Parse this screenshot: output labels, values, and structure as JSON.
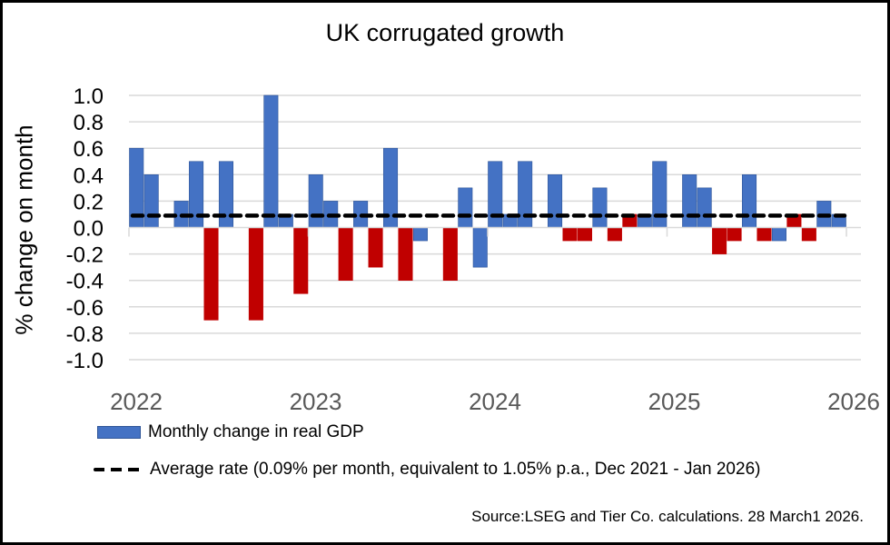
{
  "chart_data": {
    "type": "bar",
    "title": "UK corrugated growth",
    "xlabel": "",
    "ylabel": "% change on month",
    "ylim": [
      -1.0,
      1.0
    ],
    "y_ticks": [
      "1.0",
      "0.8",
      "0.6",
      "0.4",
      "0.2",
      "0.0",
      "-0.2",
      "-0.4",
      "-0.6",
      "-0.8",
      "-1.0"
    ],
    "y_tick_values": [
      1.0,
      0.8,
      0.6,
      0.4,
      0.2,
      0.0,
      -0.2,
      -0.4,
      -0.6,
      -0.8,
      -1.0
    ],
    "x_ticks": [
      "2022",
      "2023",
      "2024",
      "2025",
      "2026"
    ],
    "grid": true,
    "legend_position": "bottom-left",
    "colors": {
      "blue": "#4472C4",
      "red": "#C00000",
      "average_line": "#000000"
    },
    "categories": [
      "Jan 2022",
      "Feb 2022",
      "Mar 2022",
      "Apr 2022",
      "May 2022",
      "Jun 2022",
      "Jul 2022",
      "Aug 2022",
      "Sep 2022",
      "Oct 2022",
      "Nov 2022",
      "Dec 2022",
      "Jan 2023",
      "Feb 2023",
      "Mar 2023",
      "Apr 2023",
      "May 2023",
      "Jun 2023",
      "Jul 2023",
      "Aug 2023",
      "Sep 2023",
      "Oct 2023",
      "Nov 2023",
      "Dec 2023",
      "Jan 2024",
      "Feb 2024",
      "Mar 2024",
      "Apr 2024",
      "May 2024",
      "Jun 2024",
      "Jul 2024",
      "Aug 2024",
      "Sep 2024",
      "Oct 2024",
      "Nov 2024",
      "Dec 2024",
      "Jan 2025",
      "Feb 2025",
      "Mar 2025",
      "Apr 2025",
      "May 2025",
      "Jun 2025",
      "Jul 2025",
      "Aug 2025",
      "Sep 2025",
      "Oct 2025",
      "Nov 2025",
      "Dec 2025"
    ],
    "series": [
      {
        "name": "Monthly change in real GDP",
        "type": "bar",
        "values": [
          0.6,
          0.4,
          0.0,
          0.2,
          0.5,
          -0.7,
          0.5,
          0.0,
          -0.7,
          1.0,
          0.1,
          -0.5,
          0.4,
          0.2,
          -0.4,
          0.2,
          -0.3,
          0.6,
          -0.4,
          -0.1,
          0.0,
          -0.4,
          0.3,
          -0.3,
          0.5,
          0.1,
          0.5,
          0.0,
          0.4,
          -0.1,
          -0.1,
          0.3,
          -0.1,
          0.1,
          0.1,
          0.5,
          0.0,
          0.4,
          0.3,
          -0.2,
          -0.1,
          0.4,
          -0.1,
          -0.1,
          0.1,
          -0.1,
          0.2,
          0.1
        ],
        "bar_colors": [
          "blue",
          "blue",
          "blue",
          "blue",
          "blue",
          "red",
          "blue",
          "blue",
          "red",
          "blue",
          "blue",
          "red",
          "blue",
          "blue",
          "red",
          "blue",
          "red",
          "blue",
          "red",
          "blue",
          "blue",
          "red",
          "blue",
          "blue",
          "blue",
          "blue",
          "blue",
          "blue",
          "blue",
          "red",
          "red",
          "blue",
          "red",
          "red",
          "blue",
          "blue",
          "blue",
          "blue",
          "blue",
          "red",
          "red",
          "blue",
          "red",
          "blue",
          "red",
          "red",
          "blue",
          "blue"
        ]
      },
      {
        "name": "Average rate (0.09% per month, equivalent to 1.05% p.a., Dec 2021 - Jan 2026)",
        "type": "line",
        "style": "dashed",
        "value": 0.09
      }
    ]
  },
  "legend": {
    "bar_label": "Monthly change in real GDP",
    "line_label": "Average rate (0.09% per month, equivalent to 1.05% p.a., Dec 2021 - Jan 2026)"
  },
  "source": "Source:LSEG and Tier Co. calculations. 28 March1 2026."
}
